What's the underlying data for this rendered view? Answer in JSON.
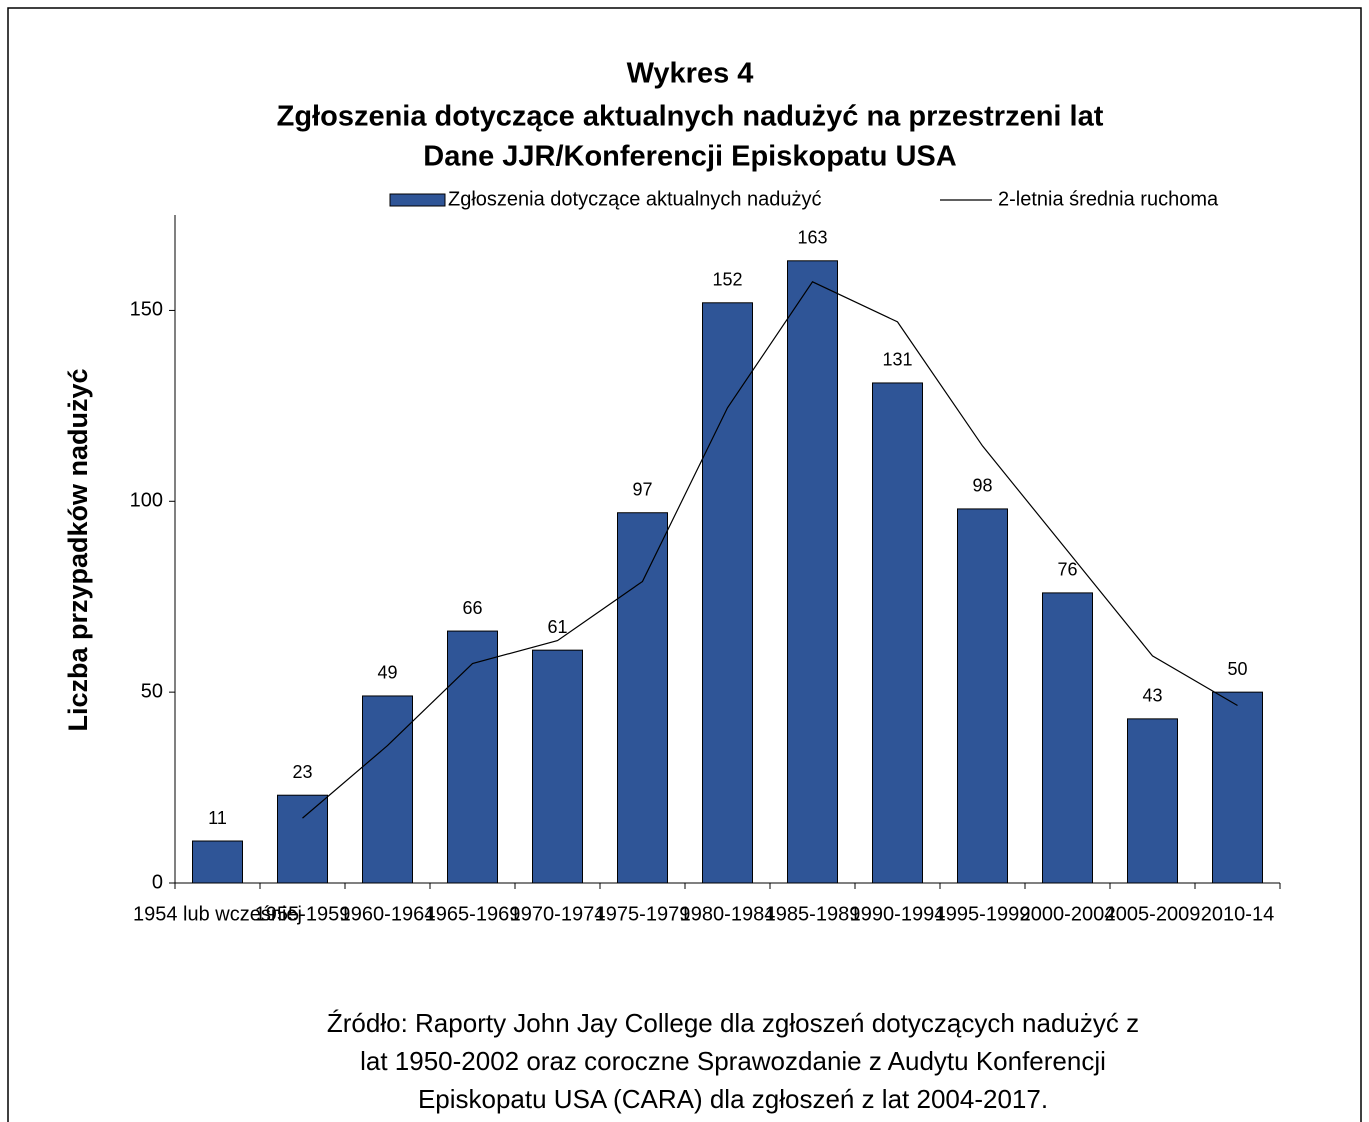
{
  "chart_data": {
    "type": "bar",
    "title": [
      "Wykres 4",
      "Zgłoszenia dotyczące aktualnych nadużyć na przestrzeni lat",
      "Dane JJR/Konferencji Episkopatu USA"
    ],
    "y_label": "Liczba przypadków nadużyć",
    "categories": [
      "1954 lub wcześniej",
      "1955-1959",
      "1960-1964",
      "1965-1969",
      "1970-1974",
      "1975-1979",
      "1980-1984",
      "1985-1989",
      "1990-1994",
      "1995-1999",
      "2000-2004",
      "2005-2009",
      "2010-14"
    ],
    "series": [
      {
        "name": "Zgłoszenia dotyczące aktualnych nadużyć",
        "type": "bar",
        "color": "#2f5597",
        "values": [
          11,
          23,
          49,
          66,
          61,
          97,
          152,
          163,
          131,
          98,
          76,
          43,
          50
        ]
      },
      {
        "name": "2-letnia średnia ruchoma",
        "type": "line",
        "color": "#000000",
        "values": [
          null,
          17,
          36,
          57.5,
          63.5,
          79,
          124.5,
          157.5,
          147,
          114.5,
          87,
          59.5,
          46.5
        ]
      }
    ],
    "ylim": [
      0,
      175
    ],
    "yticks": [
      0,
      50,
      100,
      150
    ],
    "grid": false,
    "legend": "top",
    "source": [
      "Źródło: Raporty John Jay College dla zgłoszeń dotyczących nadużyć z",
      "lat 1950-2002 oraz coroczne Sprawozdanie z Audytu Konferencji",
      "Episkopatu USA (CARA) dla zgłoszeń z lat 2004-2017."
    ]
  }
}
